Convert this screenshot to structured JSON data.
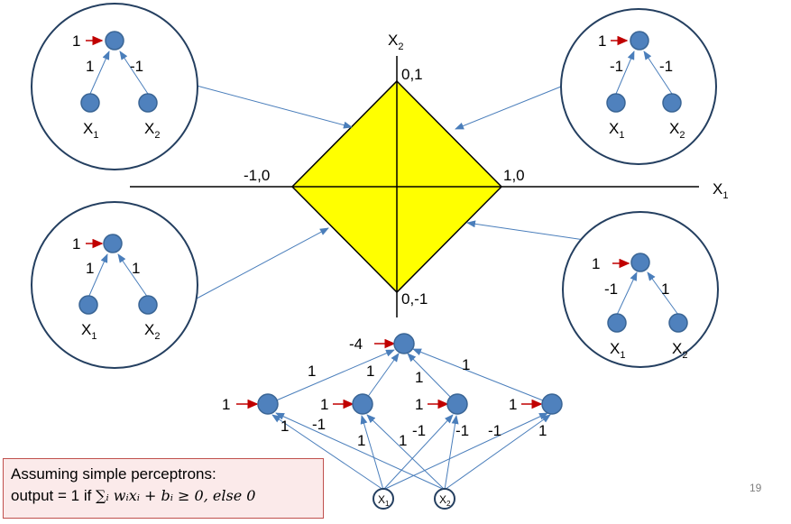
{
  "axes": {
    "x_label": "X",
    "x_sub": "1",
    "y_label": "X",
    "y_sub": "2"
  },
  "diamond": {
    "top": "0,1",
    "right": "1,0",
    "left": "-1,0",
    "bottom": "0,-1",
    "fill": "#ffff00"
  },
  "perceptrons": [
    {
      "name": "top-left",
      "bias": "1",
      "w1": "1",
      "w2": "-1",
      "x1": "X",
      "x1_sub": "1",
      "x2": "X",
      "x2_sub": "2"
    },
    {
      "name": "top-right",
      "bias": "1",
      "w1": "-1",
      "w2": "-1",
      "x1": "X",
      "x1_sub": "1",
      "x2": "X",
      "x2_sub": "2"
    },
    {
      "name": "bottom-left",
      "bias": "1",
      "w1": "1",
      "w2": "1",
      "x1": "X",
      "x1_sub": "1",
      "x2": "X",
      "x2_sub": "2"
    },
    {
      "name": "bottom-right",
      "bias": "1",
      "w1": "-1",
      "w2": "1",
      "x1": "X",
      "x1_sub": "1",
      "x2": "X",
      "x2_sub": "2"
    }
  ],
  "network": {
    "output_bias": "-4",
    "hidden_biases": [
      "1",
      "1",
      "1",
      "1"
    ],
    "hidden_to_output_weights": [
      "1",
      "1",
      "1",
      "1"
    ],
    "input_weights": [
      "1",
      "-1",
      "1",
      "1",
      "-1",
      "-1",
      "-1",
      "1"
    ],
    "inputs": [
      {
        "label": "X",
        "sub": "1"
      },
      {
        "label": "X",
        "sub": "2"
      }
    ]
  },
  "note": {
    "line1": "Assuming simple perceptrons:",
    "line2_prefix": "output = 1 if ",
    "formula": "∑ᵢ wᵢxᵢ + bᵢ ≥ 0, else 0"
  },
  "page_number": "19",
  "colors": {
    "node": "#4f81bd",
    "arrow": "#c00000",
    "circle_border": "#243f60",
    "note_border": "#c0504d"
  }
}
